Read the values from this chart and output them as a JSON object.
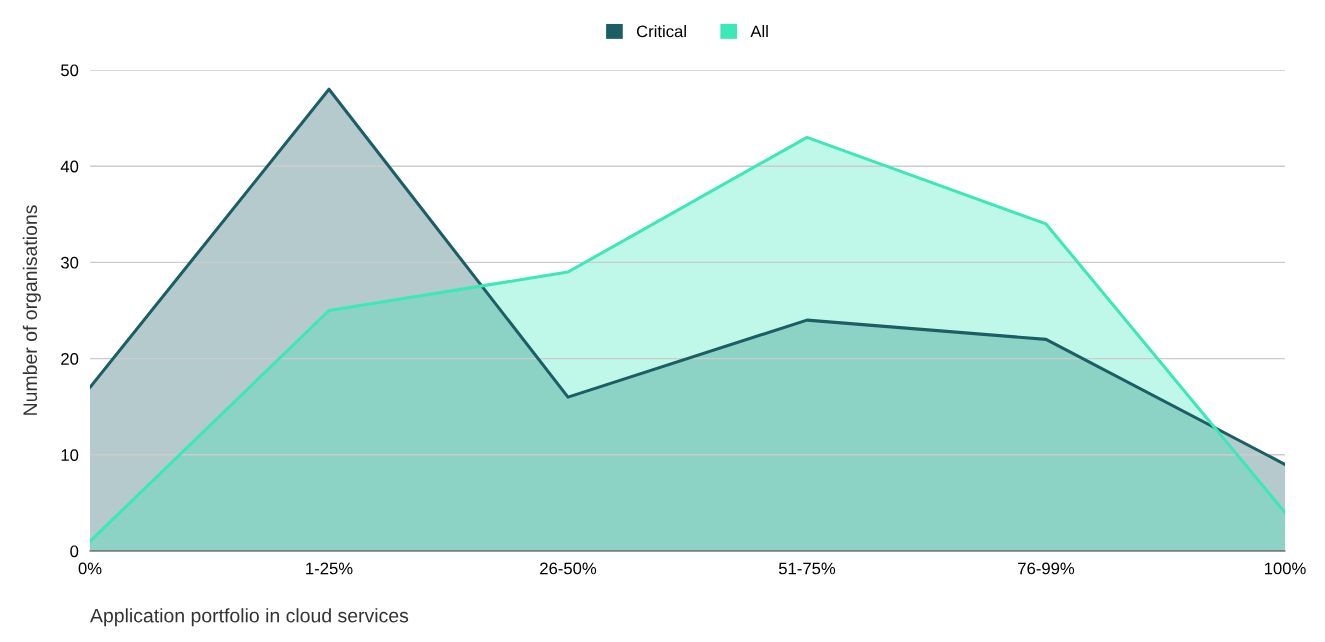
{
  "chart_data": {
    "type": "area",
    "xlabel": "Application portfolio in cloud services",
    "ylabel": "Number of organisations",
    "categories": [
      "0%",
      "1-25%",
      "26-50%",
      "51-75%",
      "76-99%",
      "100%"
    ],
    "series": [
      {
        "name": "Critical",
        "color": "#1b5e64",
        "values": [
          17,
          48,
          16,
          24,
          22,
          9
        ]
      },
      {
        "name": "All",
        "color": "#3de8b8",
        "values": [
          1,
          25,
          29,
          43,
          34,
          4
        ]
      }
    ],
    "ylim": [
      0,
      50
    ],
    "yticks": [
      0,
      10,
      20,
      30,
      40,
      50
    ],
    "grid": "y",
    "legend": "top"
  }
}
